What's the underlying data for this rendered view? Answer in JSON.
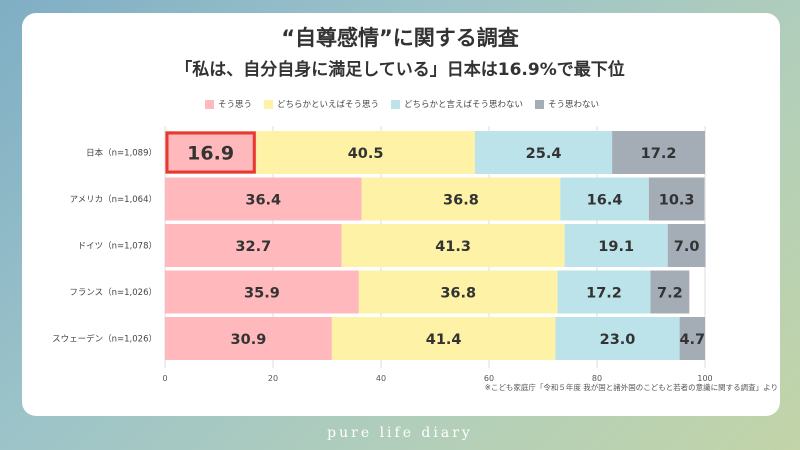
{
  "title": "“自尊感情”に関する調査",
  "subtitle": "「私は、自分自身に満足している」日本は16.9%で最下位",
  "source_note": "※こども家庭庁「令和５年度 我が国と諸外国のこどもと若者の意識に関する調査」より",
  "footer": "pure life diary",
  "colors": {
    "strongly_agree": "#ffb8bc",
    "somewhat_agree": "#fdf2a6",
    "somewhat_disagree": "#bde3ea",
    "strongly_disagree": "#a4acb6",
    "highlight_border": "#e8392f",
    "grid": "#dddddd"
  },
  "chart_data": {
    "type": "bar",
    "orientation": "horizontal",
    "stacked": true,
    "categories": [
      "日本（n=1,089）",
      "アメリカ（n=1,064）",
      "ドイツ（n=1,078）",
      "フランス（n=1,026）",
      "スウェーデン（n=1,026）"
    ],
    "series": [
      {
        "name": "そう思う",
        "values": [
          16.9,
          36.4,
          32.7,
          35.9,
          30.9
        ]
      },
      {
        "name": "どちらかといえばそう思う",
        "values": [
          40.5,
          36.8,
          41.3,
          36.8,
          41.4
        ]
      },
      {
        "name": "どちらかと言えばそう思わない",
        "values": [
          25.4,
          16.4,
          19.1,
          17.2,
          23.0
        ]
      },
      {
        "name": "そう思わない",
        "values": [
          17.2,
          10.3,
          7.0,
          7.2,
          4.7
        ]
      }
    ],
    "xlim": [
      0,
      100
    ],
    "xticks": [
      0,
      20,
      40,
      60,
      80,
      100
    ],
    "highlight": {
      "category_index": 0,
      "series_index": 0
    },
    "legend_position": "top",
    "grid": true
  }
}
